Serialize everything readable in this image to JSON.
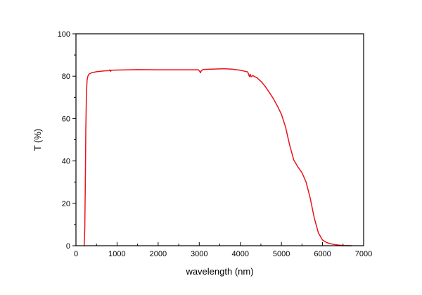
{
  "chart_data": {
    "type": "line",
    "title": "",
    "xlabel": "wavelength (nm)",
    "ylabel": "T (%)",
    "xlim": [
      0,
      7000
    ],
    "ylim": [
      0,
      100
    ],
    "xticks": [
      0,
      1000,
      2000,
      3000,
      4000,
      5000,
      6000,
      7000
    ],
    "yticks": [
      0,
      20,
      40,
      60,
      80,
      100
    ],
    "x_minor_step": 500,
    "y_minor_step": 10,
    "grid": false,
    "legend": "none",
    "series": [
      {
        "color": "#e8141b",
        "points": [
          [
            200,
            0
          ],
          [
            215,
            8
          ],
          [
            228,
            30
          ],
          [
            240,
            55
          ],
          [
            255,
            72
          ],
          [
            270,
            78
          ],
          [
            290,
            80
          ],
          [
            320,
            81
          ],
          [
            380,
            81.6
          ],
          [
            500,
            82.1
          ],
          [
            700,
            82.5
          ],
          [
            800,
            82.6
          ],
          [
            830,
            83.0
          ],
          [
            845,
            82.3
          ],
          [
            860,
            82.8
          ],
          [
            1000,
            82.9
          ],
          [
            1500,
            83.1
          ],
          [
            2000,
            83.0
          ],
          [
            2500,
            83.0
          ],
          [
            2980,
            83.0
          ],
          [
            3010,
            82.3
          ],
          [
            3030,
            81.6
          ],
          [
            3050,
            82.6
          ],
          [
            3100,
            83.2
          ],
          [
            3300,
            83.3
          ],
          [
            3600,
            83.5
          ],
          [
            3800,
            83.3
          ],
          [
            4000,
            82.8
          ],
          [
            4180,
            82.0
          ],
          [
            4220,
            79.8
          ],
          [
            4240,
            80.9
          ],
          [
            4260,
            79.7
          ],
          [
            4300,
            80.3
          ],
          [
            4400,
            79.3
          ],
          [
            4500,
            77.6
          ],
          [
            4600,
            75.3
          ],
          [
            4700,
            72.5
          ],
          [
            4800,
            69.5
          ],
          [
            4900,
            66.0
          ],
          [
            5000,
            62.0
          ],
          [
            5100,
            56.0
          ],
          [
            5200,
            47.5
          ],
          [
            5300,
            40.5
          ],
          [
            5400,
            37.2
          ],
          [
            5500,
            34.5
          ],
          [
            5600,
            30.0
          ],
          [
            5700,
            22.5
          ],
          [
            5800,
            13.0
          ],
          [
            5900,
            6.0
          ],
          [
            6000,
            2.7
          ],
          [
            6100,
            1.5
          ],
          [
            6200,
            0.9
          ],
          [
            6300,
            0.5
          ],
          [
            6500,
            0.1
          ],
          [
            6700,
            0
          ]
        ]
      }
    ]
  }
}
